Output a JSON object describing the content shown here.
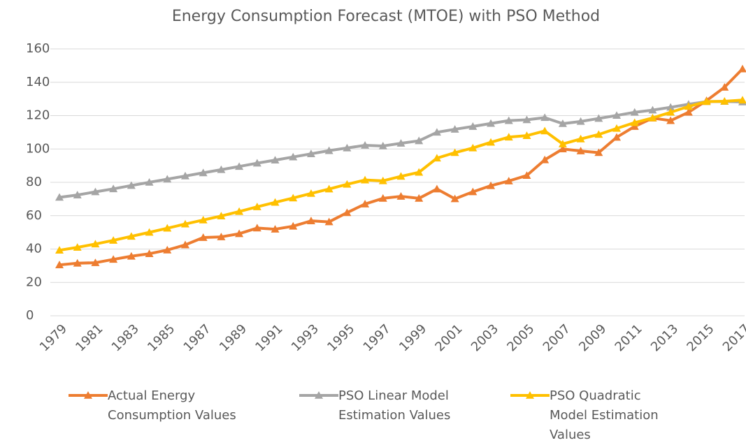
{
  "chart_data": {
    "type": "line",
    "title": "Energy Consumption Forecast (MTOE) with PSO Method",
    "categories": [
      "1979",
      null,
      "1981",
      null,
      "1983",
      null,
      "1985",
      null,
      "1987",
      null,
      "1989",
      null,
      "1991",
      null,
      "1993",
      null,
      "1995",
      null,
      "1997",
      null,
      "1999",
      null,
      "2001",
      null,
      "2003",
      null,
      "2005",
      null,
      "2007",
      null,
      "2009",
      null,
      "2011",
      null,
      "2013",
      null,
      "2015",
      null,
      "2017"
    ],
    "series": [
      {
        "name": "Actual Energy Consumption Values",
        "color": "#ed7d31",
        "values": [
          30.5,
          31.5,
          31.8,
          33.8,
          35.7,
          37.2,
          39.4,
          42.5,
          46.9,
          47.3,
          49.2,
          52.6,
          51.9,
          53.7,
          56.9,
          56.3,
          61.8,
          67,
          70.4,
          71.6,
          70.4,
          76,
          70.1,
          74.3,
          78,
          80.8,
          84.1,
          93.5,
          100,
          98.8,
          97.8,
          107,
          113.5,
          118.5,
          117,
          122,
          129,
          137,
          148
        ]
      },
      {
        "name": "PSO Linear Model Estimation Values",
        "color": "#a5a5a5",
        "values": [
          71,
          72.4,
          74.3,
          76.1,
          78.1,
          80,
          81.9,
          83.8,
          85.7,
          87.6,
          89.5,
          91.5,
          93.3,
          95.2,
          97.1,
          99,
          100.6,
          102.2,
          101.8,
          103.4,
          104.9,
          110,
          111.8,
          113.5,
          115.3,
          117,
          117.5,
          118.8,
          115.2,
          116.5,
          118.3,
          120.1,
          122,
          123.3,
          125,
          126.8,
          128.4,
          128.5,
          128.2
        ]
      },
      {
        "name": "PSO Quadratic Model Estimation Values",
        "color": "#ffc000",
        "values": [
          39.3,
          41,
          43,
          45.2,
          47.6,
          50,
          52.5,
          55,
          57.4,
          59.8,
          62.5,
          65.3,
          68,
          70.6,
          73.3,
          76,
          78.8,
          81.4,
          80.9,
          83.6,
          86,
          94.5,
          97.8,
          100.6,
          104,
          107.1,
          108,
          110.8,
          103,
          106,
          108.7,
          112.3,
          115.8,
          118.6,
          122,
          125.5,
          128.4,
          128.6,
          129.3
        ]
      }
    ],
    "ylim": [
      0,
      160
    ],
    "yticks": [
      0,
      20,
      40,
      60,
      80,
      100,
      120,
      140,
      160
    ],
    "grid": true,
    "legend": "bottom"
  }
}
